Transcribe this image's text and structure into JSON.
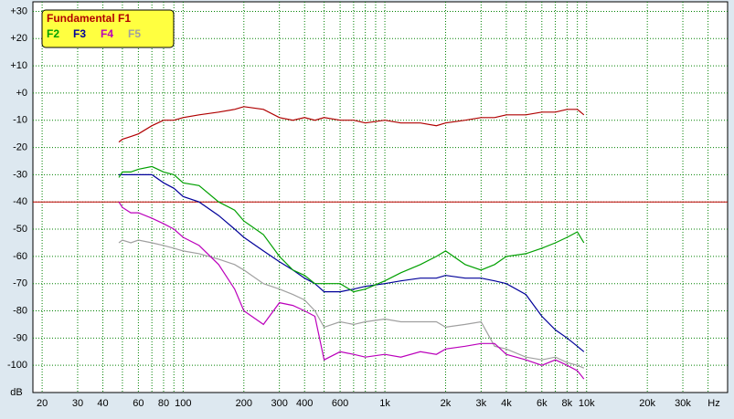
{
  "chart_data": {
    "type": "line",
    "xscale": "log",
    "grid": true,
    "legend_position": "top-left",
    "ylabel": "dB",
    "xlabel": "Hz",
    "xlim": [
      18,
      50000
    ],
    "ylim": [
      -110,
      33.5
    ],
    "yticks": [
      {
        "value": 30,
        "label": "+30"
      },
      {
        "value": 20,
        "label": "+20"
      },
      {
        "value": 10,
        "label": "+10"
      },
      {
        "value": 0,
        "label": "+0"
      },
      -10,
      -20,
      -30,
      -40,
      -50,
      -60,
      -70,
      -80,
      -90,
      -100
    ],
    "xticks": [
      20,
      30,
      40,
      60,
      80,
      100,
      200,
      300,
      400,
      600,
      {
        "value": 1000,
        "label": "1k"
      },
      {
        "value": 2000,
        "label": "2k"
      },
      {
        "value": 3000,
        "label": "3k"
      },
      {
        "value": 4000,
        "label": "4k"
      },
      {
        "value": 6000,
        "label": "6k"
      },
      {
        "value": 8000,
        "label": "8k"
      },
      {
        "value": 10000,
        "label": "10k"
      },
      {
        "value": 20000,
        "label": "20k"
      },
      {
        "value": 30000,
        "label": "30k"
      }
    ],
    "x_minor_grid": [
      50,
      70,
      90,
      500,
      700,
      800,
      900,
      5000,
      7000,
      9000,
      40000
    ],
    "reference_line": {
      "value": -40,
      "color": "#c00000"
    },
    "x": [
      48,
      50,
      55,
      60,
      70,
      80,
      90,
      100,
      120,
      150,
      180,
      200,
      250,
      300,
      350,
      400,
      450,
      500,
      600,
      700,
      800,
      1000,
      1200,
      1500,
      1800,
      2000,
      2500,
      3000,
      3500,
      4000,
      5000,
      6000,
      7000,
      8000,
      9000,
      9700
    ],
    "series": [
      {
        "name": "Fundamental F1",
        "color": "#b00000",
        "values": [
          -18,
          -17,
          -16,
          -15,
          -12,
          -10,
          -10,
          -9,
          -8,
          -7,
          -6,
          -5,
          -6,
          -9,
          -10,
          -9,
          -10,
          -9,
          -10,
          -10,
          -11,
          -10,
          -11,
          -11,
          -12,
          -11,
          -10,
          -9,
          -9,
          -8,
          -8,
          -7,
          -7,
          -6,
          -6,
          -8
        ]
      },
      {
        "name": "F2",
        "color": "#00a000",
        "values": [
          -31,
          -29,
          -29,
          -28,
          -27,
          -29,
          -30,
          -33,
          -34,
          -40,
          -43,
          -47,
          -52,
          -60,
          -65,
          -67,
          -70,
          -70,
          -70,
          -73,
          -72,
          -69,
          -66,
          -63,
          -60,
          -58,
          -63,
          -65,
          -63,
          -60,
          -59,
          -57,
          -55,
          -53,
          -51,
          -55
        ]
      },
      {
        "name": "F3",
        "color": "#000099",
        "values": [
          -30,
          -30,
          -30,
          -30,
          -30,
          -33,
          -35,
          -38,
          -40,
          -45,
          -50,
          -53,
          -58,
          -62,
          -65,
          -68,
          -70,
          -73,
          -73,
          -72,
          -71,
          -70,
          -69,
          -68,
          -68,
          -67,
          -68,
          -68,
          -69,
          -70,
          -74,
          -82,
          -87,
          -90,
          -93,
          -95
        ]
      },
      {
        "name": "F4",
        "color": "#bb00bb",
        "values": [
          -40,
          -42,
          -44,
          -44,
          -46,
          -48,
          -50,
          -53,
          -56,
          -63,
          -72,
          -80,
          -85,
          -77,
          -78,
          -80,
          -82,
          -98,
          -95,
          -96,
          -97,
          -96,
          -97,
          -95,
          -96,
          -94,
          -93,
          -92,
          -92,
          -96,
          -98,
          -100,
          -98,
          -100,
          -102,
          -105
        ]
      },
      {
        "name": "F5",
        "color": "#a0a0a0",
        "values": [
          -55,
          -54,
          -55,
          -54,
          -55,
          -56,
          -57,
          -58,
          -59,
          -61,
          -63,
          -65,
          -70,
          -72,
          -74,
          -76,
          -80,
          -86,
          -84,
          -85,
          -84,
          -83,
          -84,
          -84,
          -84,
          -86,
          -85,
          -84,
          -93,
          -94,
          -97,
          -98,
          -97,
          -99,
          -100,
          -101
        ]
      }
    ]
  }
}
